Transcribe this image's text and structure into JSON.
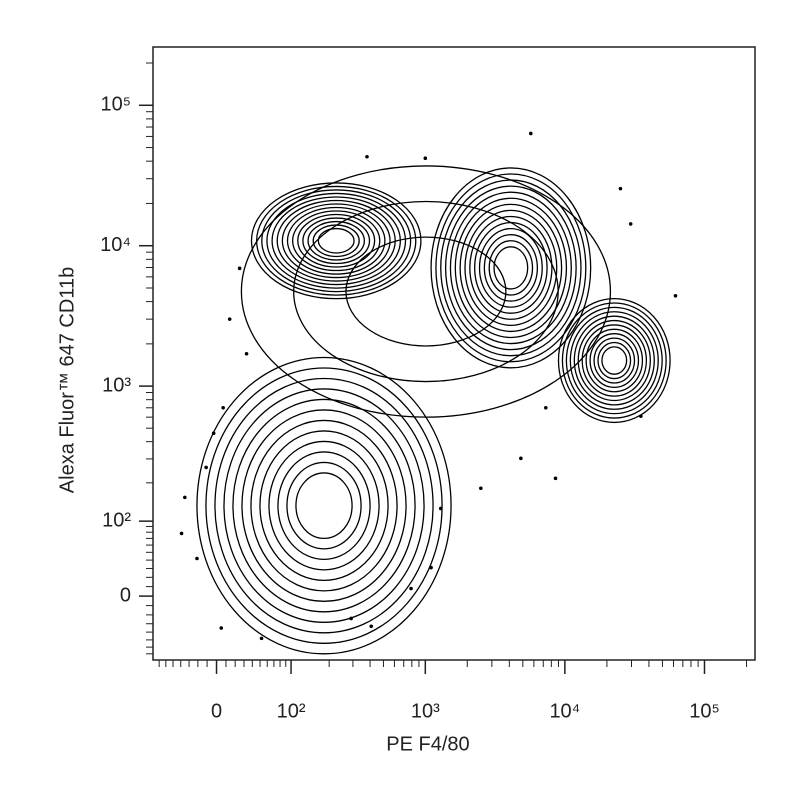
{
  "chart_data": {
    "type": "contour",
    "xlabel": "PE F4/80",
    "ylabel": "Alexa Fluor™ 647 CD11b",
    "xscale": "biexponential",
    "yscale": "biexponential",
    "color": "#000000",
    "xlim": [
      -80,
      230000
    ],
    "ylim": [
      -80,
      260000
    ],
    "xticks": [
      0,
      {
        "value": 100,
        "label": "10²"
      },
      {
        "value": 1000,
        "label": "10³"
      },
      {
        "value": 10000,
        "label": "10⁴"
      },
      {
        "value": 100000,
        "label": "10⁵"
      }
    ],
    "yticks": [
      0,
      {
        "value": 100,
        "label": "10²"
      },
      {
        "value": 1000,
        "label": "10³"
      },
      {
        "value": 10000,
        "label": "10⁴"
      },
      {
        "value": 100000,
        "label": "10⁵"
      }
    ],
    "xminorticks": [
      -70,
      -60,
      -50,
      -40,
      -30,
      -20,
      -10,
      10,
      20,
      30,
      40,
      50,
      60,
      70,
      80,
      90,
      200,
      300,
      400,
      500,
      600,
      700,
      800,
      900,
      2000,
      3000,
      4000,
      5000,
      6000,
      7000,
      8000,
      9000,
      20000,
      30000,
      40000,
      50000,
      60000,
      70000,
      80000,
      90000,
      200000
    ],
    "yminorticks": [
      -70,
      -60,
      -50,
      -40,
      -30,
      -20,
      -10,
      10,
      20,
      30,
      40,
      50,
      60,
      70,
      80,
      90,
      200,
      300,
      400,
      500,
      600,
      700,
      800,
      900,
      2000,
      3000,
      4000,
      5000,
      6000,
      7000,
      8000,
      9000,
      20000,
      30000,
      40000,
      50000,
      60000,
      70000,
      80000,
      90000,
      200000
    ],
    "populations": [
      {
        "x": [
          27,
          21200
        ],
        "y": [
          600,
          37000
        ],
        "levels": 3
      },
      {
        "x": [
          39,
          930
        ],
        "y": [
          4200,
          28000
        ],
        "levels": 14
      },
      {
        "x": [
          1100,
          15300
        ],
        "y": [
          1350,
          35800
        ],
        "levels": 14
      },
      {
        "x": [
          9000,
          56700
        ],
        "y": [
          550,
          4200
        ],
        "levels": 12
      },
      {
        "x": [
          -21,
          1530
        ],
        "y": [
          -70,
          1600
        ],
        "levels": 12
      }
    ],
    "events": {
      "x": [
        25,
        14,
        33,
        7,
        -3,
        -11,
        -35,
        -39,
        -21,
        5,
        52,
        291,
        408,
        790,
        1100,
        1290,
        2500,
        4840,
        8570,
        5700,
        25000,
        29600,
        62000,
        35000,
        7300,
        1000,
        380
      ],
      "y": [
        6900,
        3000,
        1700,
        700,
        460,
        260,
        155,
        78,
        42,
        -35,
        -48,
        -24,
        -33,
        8,
        31,
        127,
        182,
        303,
        216,
        63000,
        25500,
        14300,
        4400,
        610,
        700,
        42000,
        43000
      ]
    }
  }
}
